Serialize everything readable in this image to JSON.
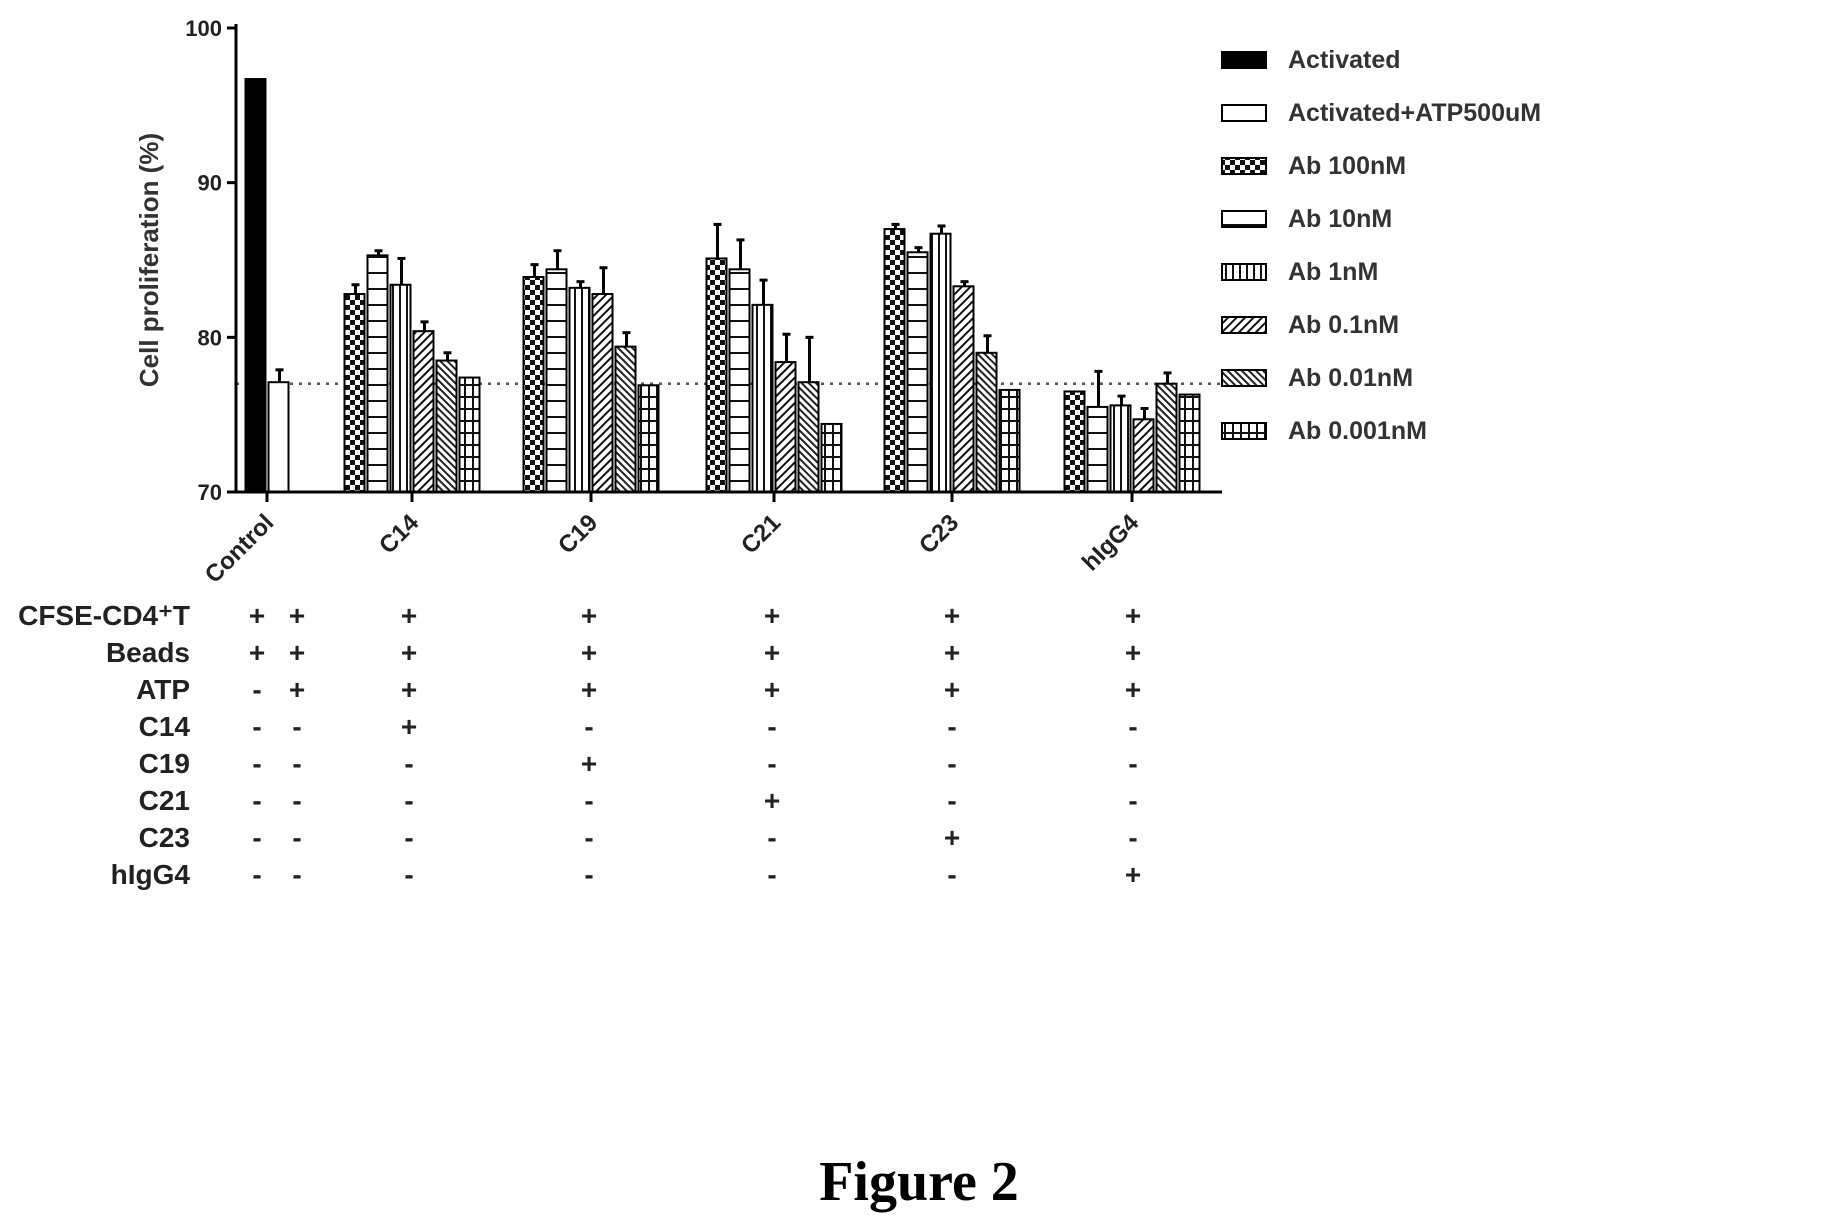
{
  "figure_caption": "Figure 2",
  "chart_data": {
    "type": "bar",
    "ylabel": "Cell proliferation (%)",
    "ylim": [
      70,
      100
    ],
    "yticks": [
      "70",
      "80",
      "90",
      "100"
    ],
    "reference_line": 77,
    "categories": [
      "Control",
      "C14",
      "C19",
      "C21",
      "C23",
      "hIgG4"
    ],
    "legend": [
      "Activated",
      "Activated+ATP500uM",
      "Ab 100nM",
      "Ab 10nM",
      "Ab 1nM",
      "Ab 0.1nM",
      "Ab 0.01nM",
      "Ab 0.001nM"
    ],
    "legend_position": "right",
    "series": [
      {
        "name": "Activated",
        "values": [
          96.7,
          null,
          null,
          null,
          null,
          null
        ],
        "errors": [
          0,
          null,
          null,
          null,
          null,
          null
        ],
        "pattern": "solid"
      },
      {
        "name": "Activated+ATP500uM",
        "values": [
          77.1,
          null,
          null,
          null,
          null,
          null
        ],
        "errors": [
          0.8,
          null,
          null,
          null,
          null,
          null
        ],
        "pattern": "empty"
      },
      {
        "name": "Ab 100nM",
        "values": [
          null,
          82.8,
          83.9,
          85.1,
          87.0,
          76.5
        ],
        "errors": [
          null,
          0.6,
          0.8,
          2.2,
          0.3,
          0
        ],
        "pattern": "checker"
      },
      {
        "name": "Ab 10nM",
        "values": [
          null,
          85.3,
          84.4,
          84.4,
          85.5,
          75.5
        ],
        "errors": [
          null,
          0.3,
          1.2,
          1.9,
          0.3,
          2.3
        ],
        "pattern": "hlines"
      },
      {
        "name": "Ab 1nM",
        "values": [
          null,
          83.4,
          83.2,
          82.1,
          86.7,
          75.6
        ],
        "errors": [
          null,
          1.7,
          0.4,
          1.6,
          0.5,
          0.6
        ],
        "pattern": "vlines"
      },
      {
        "name": "Ab 0.1nM",
        "values": [
          null,
          80.4,
          82.8,
          78.4,
          83.3,
          74.7
        ],
        "errors": [
          null,
          0.6,
          1.7,
          1.8,
          0.3,
          0.7
        ],
        "pattern": "diag"
      },
      {
        "name": "Ab 0.01nM",
        "values": [
          null,
          78.5,
          79.4,
          77.1,
          79.0,
          77.0
        ],
        "errors": [
          null,
          0.5,
          0.9,
          2.9,
          1.1,
          0.7
        ],
        "pattern": "diag2"
      },
      {
        "name": "Ab 0.001nM",
        "values": [
          null,
          77.4,
          76.9,
          74.4,
          76.6,
          76.3
        ],
        "errors": [
          null,
          0,
          0,
          0,
          0,
          0
        ],
        "pattern": "grid"
      }
    ]
  },
  "conditions": {
    "rows": [
      "CFSE-CD4⁺T",
      "Beads",
      "ATP",
      "C14",
      "C19",
      "C21",
      "C23",
      "hIgG4"
    ],
    "columns": [
      [
        "+",
        "+",
        "-",
        "-",
        "-",
        "-",
        "-",
        "-"
      ],
      [
        "+",
        "+",
        "+",
        "-",
        "-",
        "-",
        "-",
        "-"
      ],
      [
        "+",
        "+",
        "+",
        "+",
        "-",
        "-",
        "-",
        "-"
      ],
      [
        "+",
        "+",
        "+",
        "-",
        "+",
        "-",
        "-",
        "-"
      ],
      [
        "+",
        "+",
        "+",
        "-",
        "-",
        "+",
        "-",
        "-"
      ],
      [
        "+",
        "+",
        "+",
        "-",
        "-",
        "-",
        "+",
        "-"
      ],
      [
        "+",
        "+",
        "+",
        "-",
        "-",
        "-",
        "-",
        "+"
      ]
    ]
  }
}
